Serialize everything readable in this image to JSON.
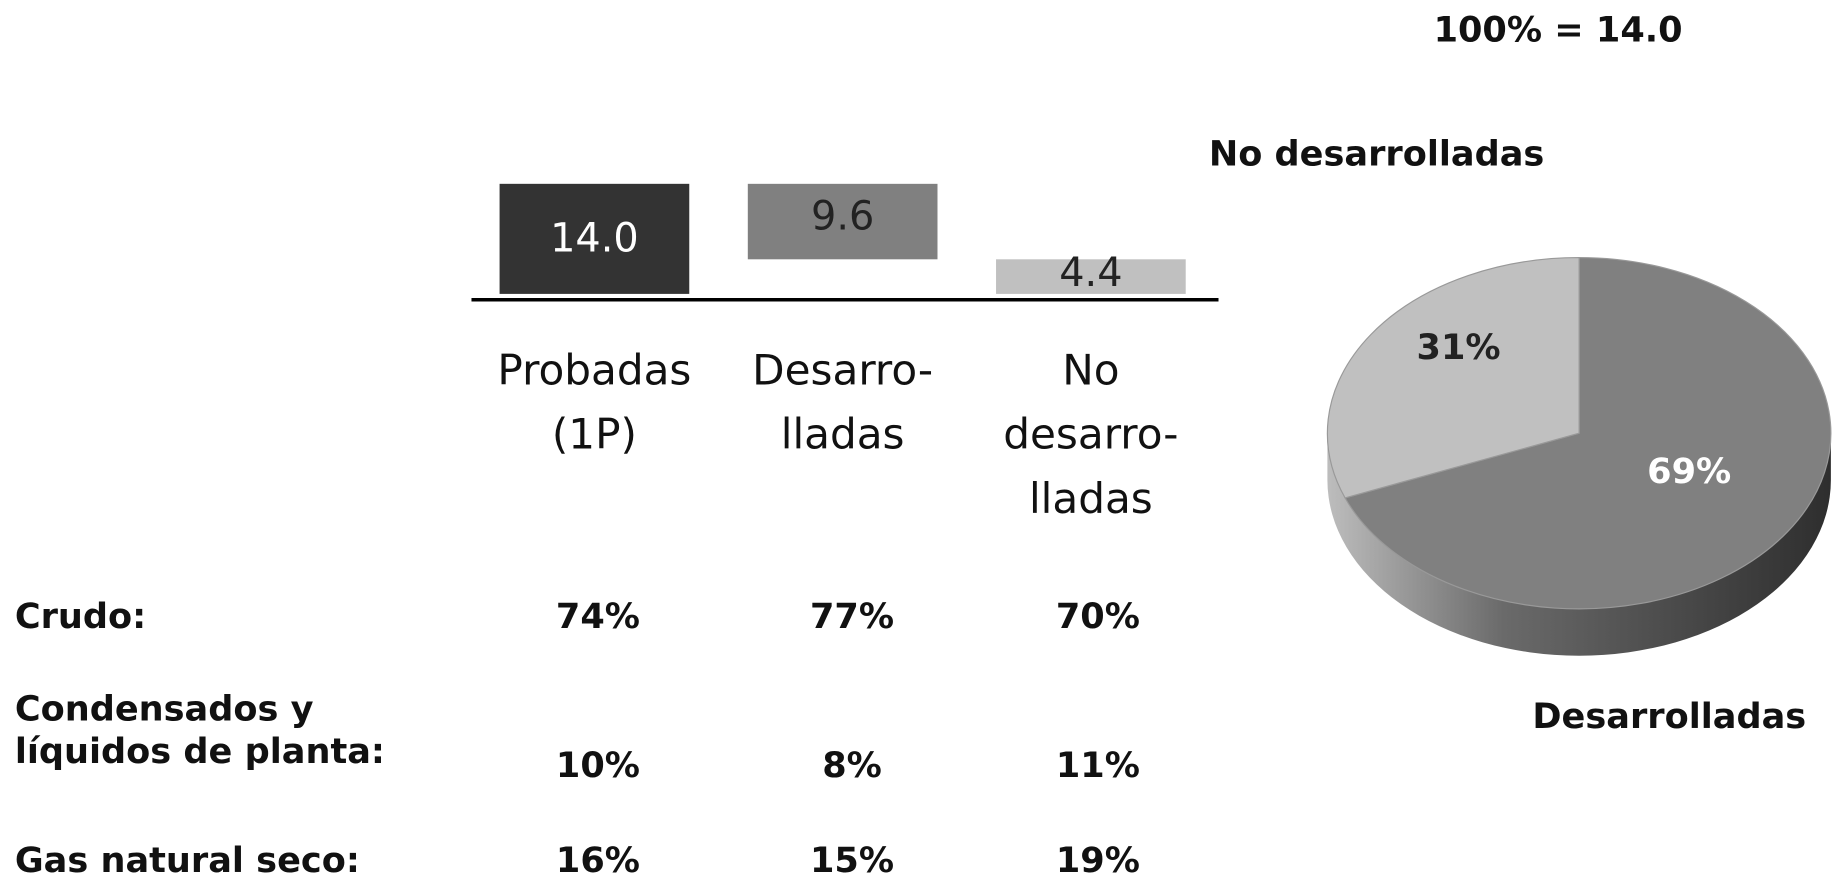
{
  "annotation": "100% = 14.0",
  "chart_data": [
    {
      "type": "waterfall",
      "categories": [
        "Probadas\n(1P)",
        "Desarro-\nlladas",
        "No\ndesarro-\nlladas"
      ],
      "values": [
        14.0,
        9.6,
        4.4
      ],
      "value_labels": [
        "14.0",
        "9.6",
        "4.4"
      ],
      "colors": [
        "#333333",
        "#808080",
        "#c0c0c0"
      ]
    },
    {
      "type": "pie",
      "categories": [
        "Desarrolladas",
        "No desarrolladas"
      ],
      "values": [
        69,
        31
      ],
      "value_labels": [
        "69%",
        "31%"
      ],
      "colors": [
        "#808080",
        "#c0c0c0"
      ]
    }
  ],
  "table": {
    "rows": [
      [
        "Crudo:",
        "74%",
        "77%",
        "70%"
      ],
      [
        "Condensados y\nlíquidos de planta:",
        "10%",
        "8%",
        "11%"
      ],
      [
        "Gas natural seco:",
        "16%",
        "15%",
        "19%"
      ]
    ]
  }
}
